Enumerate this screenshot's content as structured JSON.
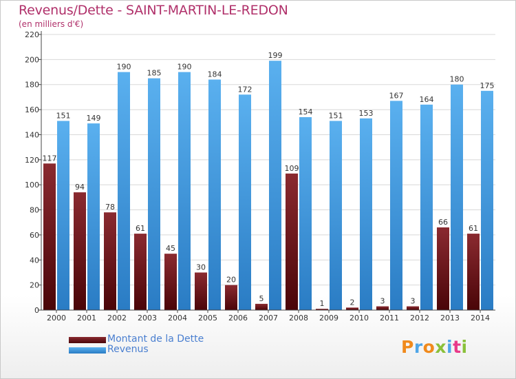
{
  "header": {
    "title": "Revenus/Dette - SAINT-MARTIN-LE-REDON",
    "subtitle": "(en milliers d'€)"
  },
  "legend": {
    "debt_label": "Montant de la Dette",
    "revenue_label": "Revenus"
  },
  "brand": {
    "text": "Proxiti"
  },
  "colors": {
    "debt": "#7a1a20",
    "revenue": "#4fa6e8",
    "title": "#b0306a",
    "legend_text": "#4a7fd0"
  },
  "chart_data": {
    "type": "bar",
    "title": "Revenus/Dette - SAINT-MARTIN-LE-REDON",
    "subtitle": "(en milliers d'€)",
    "categories": [
      "2000",
      "2001",
      "2002",
      "2003",
      "2004",
      "2005",
      "2006",
      "2007",
      "2008",
      "2009",
      "2010",
      "2011",
      "2012",
      "2013",
      "2014"
    ],
    "series": [
      {
        "name": "Montant de la Dette",
        "values": [
          117,
          94,
          78,
          61,
          45,
          30,
          20,
          5,
          109,
          1,
          2,
          3,
          3,
          66,
          61
        ]
      },
      {
        "name": "Revenus",
        "values": [
          151,
          149,
          190,
          185,
          190,
          184,
          172,
          199,
          154,
          151,
          153,
          167,
          164,
          180,
          175
        ]
      }
    ],
    "ylim": [
      0,
      220
    ],
    "yticks": [
      0,
      20,
      40,
      60,
      80,
      100,
      120,
      140,
      160,
      180,
      200,
      220
    ],
    "grid": true,
    "legend_position": "bottom-left"
  }
}
